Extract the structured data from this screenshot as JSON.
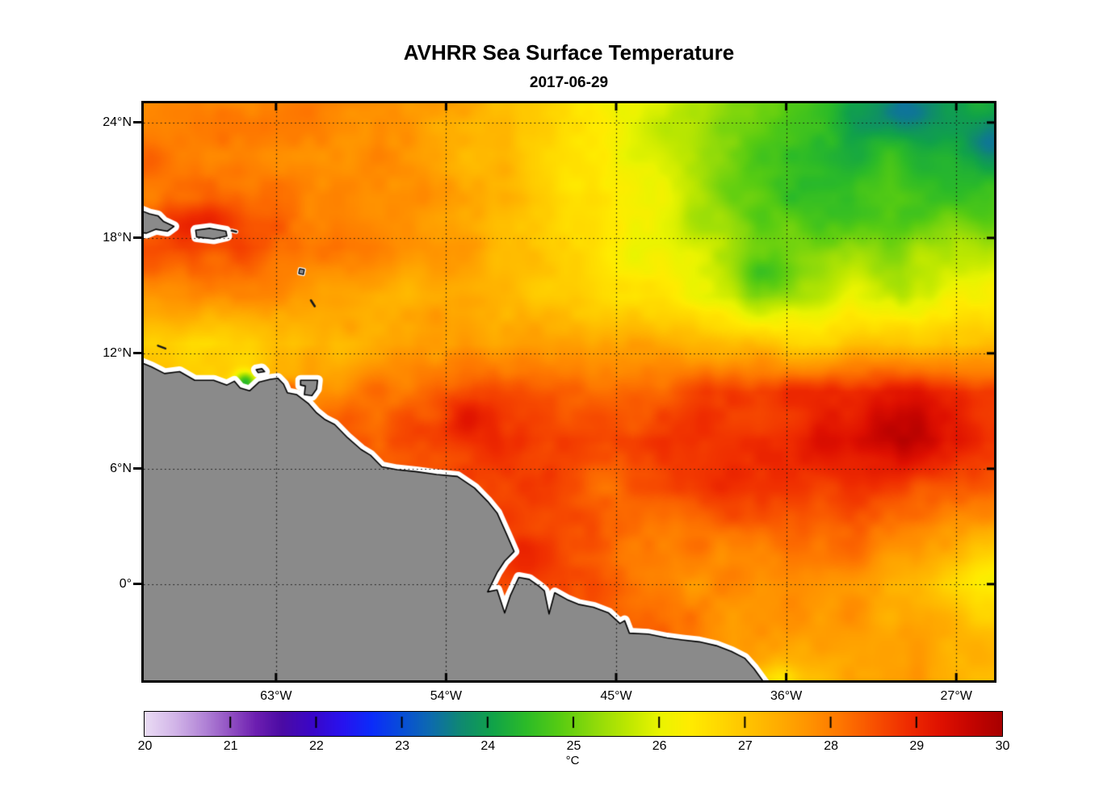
{
  "title": "AVHRR Sea Surface Temperature",
  "subtitle": "2017-06-29",
  "axes": {
    "lon_range": [
      -70,
      -25
    ],
    "lat_range": [
      -5,
      25
    ],
    "lon_ticks": [
      {
        "value": -63,
        "label": "63°W"
      },
      {
        "value": -54,
        "label": "54°W"
      },
      {
        "value": -45,
        "label": "45°W"
      },
      {
        "value": -36,
        "label": "36°W"
      },
      {
        "value": -27,
        "label": "27°W"
      }
    ],
    "lat_ticks": [
      {
        "value": 24,
        "label": "24°N"
      },
      {
        "value": 18,
        "label": "18°N"
      },
      {
        "value": 12,
        "label": "12°N"
      },
      {
        "value": 6,
        "label": "6°N"
      },
      {
        "value": 0,
        "label": "0°"
      }
    ],
    "grid_style": "dotted"
  },
  "colorbar": {
    "min": 20,
    "max": 30,
    "ticks": [
      20,
      21,
      22,
      23,
      24,
      25,
      26,
      27,
      28,
      29,
      30
    ],
    "tick_labels": [
      "20",
      "21",
      "22",
      "23",
      "24",
      "25",
      "26",
      "27",
      "28",
      "29",
      "30"
    ],
    "unit_label": "°C"
  },
  "chart_data": {
    "type": "heatmap",
    "title": "AVHRR Sea Surface Temperature",
    "date": "2017-06-29",
    "variable": "sea surface temperature",
    "units": "°C",
    "value_range": [
      20,
      30
    ],
    "land_color": "#8A8A8A",
    "coast_halo_color": "#FFFFFF",
    "grid_lon": [
      -70,
      -67.5,
      -65,
      -62.5,
      -60,
      -57.5,
      -55,
      -52.5,
      -50,
      -47.5,
      -45,
      -42.5,
      -40,
      -37.5,
      -35,
      -32.5,
      -30,
      -27.5,
      -25
    ],
    "grid_lat": [
      25,
      22.5,
      20,
      17.5,
      15,
      12.5,
      10,
      7.5,
      5,
      2.5,
      0,
      -2.5,
      -5
    ],
    "sst": [
      [
        28.0,
        28.0,
        27.9,
        28.0,
        27.9,
        27.8,
        27.6,
        27.4,
        27.0,
        26.6,
        26.2,
        25.9,
        25.4,
        24.9,
        24.6,
        24.1,
        23.9,
        24.3,
        24.0
      ],
      [
        28.1,
        28.0,
        28.0,
        27.9,
        27.9,
        27.8,
        27.6,
        27.3,
        27.0,
        26.6,
        26.2,
        25.8,
        25.2,
        24.8,
        24.5,
        24.3,
        24.4,
        24.2,
        23.9
      ],
      [
        28.2,
        28.1,
        28.2,
        28.0,
        27.9,
        27.8,
        27.7,
        27.4,
        27.1,
        26.7,
        26.3,
        25.9,
        25.3,
        24.8,
        24.5,
        24.4,
        24.6,
        24.5,
        24.7
      ],
      [
        28.5,
        28.7,
        28.5,
        28.3,
        28.1,
        27.9,
        27.7,
        27.5,
        27.1,
        26.7,
        26.3,
        26.0,
        25.6,
        25.1,
        25.0,
        25.3,
        25.2,
        25.5,
        25.6
      ],
      [
        27.9,
        28.0,
        27.9,
        27.8,
        27.6,
        27.4,
        27.4,
        27.3,
        27.1,
        26.9,
        26.5,
        26.3,
        25.9,
        25.3,
        25.7,
        26.0,
        25.6,
        26.0,
        26.3
      ],
      [
        26.9,
        26.6,
        26.8,
        27.0,
        27.2,
        27.4,
        27.5,
        27.6,
        27.7,
        27.6,
        27.5,
        27.5,
        27.3,
        27.0,
        26.9,
        26.9,
        27.0,
        27.1,
        27.0
      ],
      [
        27.2,
        27.0,
        26.9,
        27.4,
        27.9,
        28.1,
        28.3,
        28.6,
        28.6,
        28.3,
        28.2,
        28.4,
        28.6,
        28.7,
        28.8,
        29.0,
        29.2,
        29.0,
        28.8
      ],
      [
        28.0,
        28.0,
        28.0,
        28.2,
        28.4,
        28.5,
        28.8,
        28.9,
        28.9,
        28.7,
        28.6,
        28.7,
        28.8,
        28.9,
        29.1,
        29.4,
        29.5,
        29.1,
        28.9
      ],
      [
        28.2,
        28.2,
        28.2,
        28.2,
        28.3,
        28.4,
        28.6,
        28.7,
        28.7,
        28.4,
        28.1,
        28.5,
        28.7,
        28.8,
        28.8,
        28.8,
        28.7,
        28.4,
        28.2
      ],
      [
        28.3,
        28.3,
        28.3,
        28.3,
        28.3,
        28.4,
        28.5,
        28.7,
        28.8,
        28.5,
        28.2,
        28.1,
        28.0,
        28.2,
        28.3,
        28.2,
        28.0,
        27.6,
        27.2
      ],
      [
        28.2,
        28.2,
        28.2,
        28.2,
        28.2,
        28.3,
        28.4,
        28.7,
        28.8,
        28.5,
        28.3,
        27.9,
        27.8,
        27.7,
        27.8,
        27.8,
        27.4,
        26.8,
        26.5
      ],
      [
        28.0,
        28.0,
        28.0,
        28.0,
        28.0,
        28.0,
        28.1,
        28.2,
        28.3,
        28.4,
        28.4,
        28.3,
        27.9,
        27.7,
        27.6,
        27.6,
        27.5,
        27.3,
        27.0
      ],
      [
        27.8,
        27.8,
        27.8,
        27.8,
        27.8,
        27.8,
        27.9,
        28.0,
        28.1,
        28.2,
        28.2,
        28.1,
        27.8,
        27.3,
        27.2,
        27.6,
        27.6,
        27.4,
        27.1
      ]
    ],
    "features": [
      {
        "name": "cariaco-upwelling-cool-spot",
        "lon": -64.6,
        "lat": 10.5,
        "sx": 0.6,
        "sy": 0.55,
        "delta": -2.6
      },
      {
        "name": "paria-warm-spot",
        "lon": -62.3,
        "lat": 10.15,
        "sx": 0.5,
        "sy": 0.4,
        "delta": 0.8
      },
      {
        "name": "guiana-warm-eddy",
        "lon": -52.9,
        "lat": 8.8,
        "sx": 1.2,
        "sy": 1.0,
        "delta": 0.55
      },
      {
        "name": "atlantic-warm-pool",
        "lon": -29.3,
        "lat": 7.8,
        "sx": 2.4,
        "sy": 1.8,
        "delta": 0.25
      },
      {
        "name": "cool-patch-northeast",
        "lon": -29.5,
        "lat": 24.6,
        "sx": 2.0,
        "sy": 1.2,
        "delta": -0.5
      },
      {
        "name": "cool-patch-east",
        "lon": -25.3,
        "lat": 23.2,
        "sx": 1.2,
        "sy": 1.2,
        "delta": -0.45
      },
      {
        "name": "cool-patch-mid",
        "lon": -37.3,
        "lat": 16.2,
        "sx": 1.4,
        "sy": 1.1,
        "delta": -0.55
      },
      {
        "name": "equatorial-cool-tongue",
        "lon": -24.8,
        "lat": 0.7,
        "sx": 2.6,
        "sy": 1.1,
        "delta": -0.3
      },
      {
        "name": "warm-band-18n",
        "lon": -66.5,
        "lat": 18.9,
        "sx": 3.6,
        "sy": 1.0,
        "delta": 0.5
      },
      {
        "name": "amazon-coastal-warm",
        "lon": -50.3,
        "lat": 1.3,
        "sx": 1.8,
        "sy": 0.9,
        "delta": 0.35
      },
      {
        "name": "cool-spot-36w",
        "lon": -36.3,
        "lat": -4.9,
        "sx": 0.9,
        "sy": 0.7,
        "delta": -0.7
      }
    ],
    "texture": {
      "scale1": 1.7,
      "amp1": 0.2,
      "scale2": 0.75,
      "amp2": 0.11
    },
    "colormap_stops": [
      [
        20.0,
        "#EADCF4"
      ],
      [
        20.35,
        "#D2B5E8"
      ],
      [
        20.7,
        "#B183D6"
      ],
      [
        21.0,
        "#9150C2"
      ],
      [
        21.3,
        "#6C1EB0"
      ],
      [
        21.6,
        "#4B0BA4"
      ],
      [
        21.95,
        "#3A06C8"
      ],
      [
        22.3,
        "#2812EE"
      ],
      [
        22.65,
        "#0B2CFA"
      ],
      [
        23.0,
        "#084ED8"
      ],
      [
        23.35,
        "#0D6CAC"
      ],
      [
        23.7,
        "#0F8A70"
      ],
      [
        24.05,
        "#10A24A"
      ],
      [
        24.45,
        "#2CBB28"
      ],
      [
        24.85,
        "#58CC12"
      ],
      [
        25.25,
        "#8FDA0A"
      ],
      [
        25.65,
        "#BFE800"
      ],
      [
        26.0,
        "#EAF400"
      ],
      [
        26.35,
        "#FFEC00"
      ],
      [
        26.7,
        "#FFD800"
      ],
      [
        27.05,
        "#FFC200"
      ],
      [
        27.4,
        "#FFAC00"
      ],
      [
        27.75,
        "#FF9300"
      ],
      [
        28.1,
        "#FE7800"
      ],
      [
        28.5,
        "#F85200"
      ],
      [
        28.9,
        "#EF2C00"
      ],
      [
        29.3,
        "#DE1000"
      ],
      [
        29.65,
        "#C40400"
      ],
      [
        30.0,
        "#A80000"
      ]
    ],
    "coastline": {
      "polygons": [
        {
          "name": "south-america-mainland",
          "pts": [
            [
              -70.6,
              11.7
            ],
            [
              -69.6,
              11.3
            ],
            [
              -68.9,
              10.95
            ],
            [
              -68.1,
              11.05
            ],
            [
              -67.3,
              10.6
            ],
            [
              -66.3,
              10.6
            ],
            [
              -65.6,
              10.35
            ],
            [
              -65.2,
              10.55
            ],
            [
              -64.9,
              10.2
            ],
            [
              -64.4,
              10.05
            ],
            [
              -63.9,
              10.5
            ],
            [
              -63.3,
              10.65
            ],
            [
              -62.9,
              10.7
            ],
            [
              -62.6,
              10.4
            ],
            [
              -62.4,
              9.95
            ],
            [
              -61.9,
              9.85
            ],
            [
              -61.3,
              9.4
            ],
            [
              -60.85,
              8.9
            ],
            [
              -60.4,
              8.55
            ],
            [
              -59.9,
              8.3
            ],
            [
              -59.2,
              7.6
            ],
            [
              -58.5,
              7.0
            ],
            [
              -58.0,
              6.7
            ],
            [
              -57.4,
              6.1
            ],
            [
              -56.6,
              5.95
            ],
            [
              -55.6,
              5.85
            ],
            [
              -54.5,
              5.7
            ],
            [
              -53.4,
              5.6
            ],
            [
              -52.5,
              5.0
            ],
            [
              -51.8,
              4.3
            ],
            [
              -51.3,
              3.7
            ],
            [
              -50.8,
              2.6
            ],
            [
              -50.4,
              1.7
            ],
            [
              -50.9,
              1.2
            ],
            [
              -51.3,
              0.6
            ],
            [
              -51.8,
              -0.4
            ],
            [
              -51.3,
              -0.3
            ],
            [
              -50.9,
              -1.5
            ],
            [
              -50.6,
              -0.6
            ],
            [
              -50.15,
              0.35
            ],
            [
              -49.6,
              0.25
            ],
            [
              -49.1,
              -0.1
            ],
            [
              -48.8,
              -0.35
            ],
            [
              -48.55,
              -1.55
            ],
            [
              -48.25,
              -0.45
            ],
            [
              -47.6,
              -0.8
            ],
            [
              -47.0,
              -1.05
            ],
            [
              -46.2,
              -1.2
            ],
            [
              -45.4,
              -1.5
            ],
            [
              -44.8,
              -2.05
            ],
            [
              -44.55,
              -1.9
            ],
            [
              -44.3,
              -2.55
            ],
            [
              -43.3,
              -2.6
            ],
            [
              -42.3,
              -2.8
            ],
            [
              -41.5,
              -2.9
            ],
            [
              -40.6,
              -3.0
            ],
            [
              -39.7,
              -3.2
            ],
            [
              -38.9,
              -3.5
            ],
            [
              -38.2,
              -3.85
            ],
            [
              -37.7,
              -4.4
            ],
            [
              -37.15,
              -5.15
            ],
            [
              -36.9,
              -5.7
            ],
            [
              -70.6,
              -5.7
            ]
          ]
        },
        {
          "name": "hispaniola-east",
          "pts": [
            [
              -70.6,
              19.6
            ],
            [
              -69.7,
              19.25
            ],
            [
              -69.25,
              19.15
            ],
            [
              -68.95,
              18.85
            ],
            [
              -68.4,
              18.6
            ],
            [
              -68.75,
              18.35
            ],
            [
              -69.35,
              18.45
            ],
            [
              -69.85,
              18.25
            ],
            [
              -70.6,
              18.3
            ]
          ]
        },
        {
          "name": "puerto-rico",
          "pts": [
            [
              -67.25,
              18.4
            ],
            [
              -66.5,
              18.5
            ],
            [
              -65.65,
              18.35
            ],
            [
              -65.6,
              18.1
            ],
            [
              -66.3,
              17.95
            ],
            [
              -67.2,
              18.05
            ]
          ]
        },
        {
          "name": "trinidad",
          "pts": [
            [
              -61.7,
              10.6
            ],
            [
              -60.8,
              10.6
            ],
            [
              -60.85,
              10.15
            ],
            [
              -61.1,
              9.8
            ],
            [
              -61.5,
              9.85
            ],
            [
              -61.45,
              10.3
            ],
            [
              -61.7,
              10.35
            ]
          ]
        },
        {
          "name": "margarita",
          "pts": [
            [
              -64.05,
              11.15
            ],
            [
              -63.75,
              11.2
            ],
            [
              -63.6,
              11.05
            ],
            [
              -63.95,
              11.0
            ]
          ]
        }
      ],
      "minor_islands": [
        {
          "name": "virgin-islands",
          "type": "line",
          "pts": [
            [
              -65.35,
              18.38
            ],
            [
              -65.1,
              18.32
            ]
          ],
          "width": 2.5,
          "halo": 5
        },
        {
          "name": "guadeloupe",
          "type": "poly",
          "pts": [
            [
              -61.75,
              16.4
            ],
            [
              -61.5,
              16.35
            ],
            [
              -61.55,
              16.1
            ],
            [
              -61.8,
              16.15
            ]
          ],
          "width": 1.3,
          "halo": 4
        },
        {
          "name": "martinique",
          "type": "line",
          "pts": [
            [
              -61.15,
              14.75
            ],
            [
              -60.95,
              14.45
            ]
          ],
          "width": 2.8,
          "halo": 0
        },
        {
          "name": "curacao-bonaire",
          "type": "line",
          "pts": [
            [
              -69.25,
              12.4
            ],
            [
              -68.85,
              12.25
            ]
          ],
          "width": 2.5,
          "halo": 0
        }
      ]
    }
  }
}
